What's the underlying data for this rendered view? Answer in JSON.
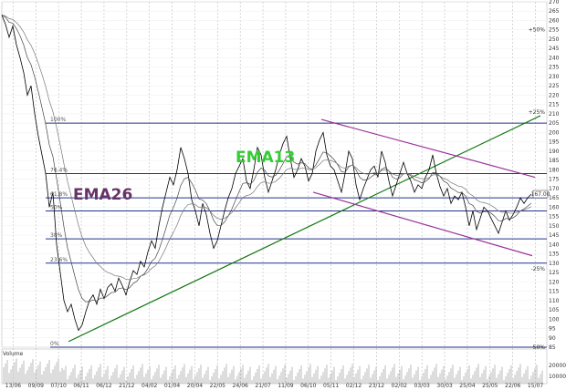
{
  "chart_data": {
    "type": "line",
    "title": "",
    "subtitle": "",
    "ylim": [
      85,
      270
    ],
    "y_ticks": [
      85,
      90,
      95,
      100,
      105,
      110,
      115,
      120,
      125,
      130,
      135,
      140,
      145,
      150,
      155,
      160,
      165,
      170,
      175,
      180,
      185,
      190,
      195,
      200,
      205,
      210,
      215,
      220,
      225,
      230,
      235,
      240,
      245,
      250,
      255,
      260,
      265,
      270
    ],
    "x_tick_labels": [
      "13/06",
      "09/09",
      "07/10",
      "06/11",
      "06/12",
      "21/12",
      "04/02",
      "01/04",
      "20/04",
      "22/05",
      "24/06",
      "21/07",
      "11/09",
      "06/10",
      "05/11",
      "02/12",
      "23/12",
      "02/02",
      "03/03",
      "30/03",
      "25/04",
      "25/05",
      "22/06",
      "15/07"
    ],
    "grid": true,
    "legend": "none",
    "price_label": "167.00",
    "volume_label": "Volume",
    "volume_ticks": [
      "200000",
      "100000"
    ],
    "annotations": [
      {
        "text": "EMA13",
        "color": "#33cc33"
      },
      {
        "text": "EMA26",
        "color": "#663366"
      }
    ],
    "pct_labels": [
      {
        "text": "+50%",
        "y": 255
      },
      {
        "text": "+25%",
        "y": 211
      },
      {
        "text": "-25%",
        "y": 127
      },
      {
        "text": "-50%",
        "y": 85
      }
    ],
    "horizontal_levels": [
      {
        "label": "0%",
        "value": 85
      },
      {
        "label": "23.6%",
        "value": 130
      },
      {
        "label": "38%",
        "value": 143
      },
      {
        "label": "50%",
        "value": 158
      },
      {
        "label": "61.8%",
        "value": 165
      },
      {
        "label": "76.4%",
        "value": 178
      },
      {
        "label": "100%",
        "value": 205
      }
    ],
    "trendlines": [
      {
        "name": "support",
        "color": "#117711",
        "x": [
          75,
          592
        ],
        "y": [
          88,
          209
        ]
      },
      {
        "name": "channel-upper",
        "color": "#993399",
        "x": [
          352,
          586
        ],
        "y": [
          207,
          176
        ]
      },
      {
        "name": "channel-lower",
        "color": "#993399",
        "x": [
          343,
          583
        ],
        "y": [
          168,
          134
        ]
      }
    ],
    "series": [
      {
        "color": "#000000",
        "x": [
          2,
          6,
          10,
          14,
          18,
          22,
          26,
          30,
          34,
          38,
          42,
          46,
          50,
          54,
          58,
          62,
          66,
          70,
          74,
          78,
          82,
          86,
          90,
          94,
          98,
          102,
          106,
          110,
          114,
          118,
          122,
          126,
          130,
          134,
          138,
          142,
          146,
          150,
          154,
          158,
          162,
          166,
          170,
          174,
          178,
          182,
          186,
          190,
          194,
          198,
          202,
          206,
          210,
          214,
          218,
          222,
          226,
          230,
          234,
          238,
          242,
          246,
          250,
          254,
          258,
          262,
          266,
          270,
          274,
          278,
          282,
          286,
          290,
          294,
          298,
          302,
          306,
          310,
          314,
          318,
          322,
          326,
          330,
          334,
          338,
          342,
          346,
          350,
          354,
          358,
          362,
          366,
          370,
          374,
          378,
          382,
          386,
          390,
          394,
          398,
          402,
          406,
          410,
          414,
          418,
          422,
          426,
          430,
          434,
          438,
          442,
          446,
          450,
          454,
          458,
          462,
          466,
          470,
          474,
          478,
          482,
          486,
          490,
          494,
          498,
          502,
          506,
          510,
          514,
          518,
          522,
          526,
          530,
          534,
          538,
          542,
          546,
          550,
          554,
          558,
          562,
          566,
          570,
          574,
          578,
          582
        ],
        "y": [
          263,
          258,
          251,
          257,
          247,
          240,
          232,
          220,
          225,
          210,
          198,
          188,
          178,
          160,
          168,
          140,
          125,
          110,
          104,
          108,
          100,
          94,
          97,
          104,
          110,
          113,
          108,
          116,
          111,
          117,
          119,
          115,
          122,
          118,
          113,
          120,
          126,
          124,
          131,
          128,
          136,
          142,
          138,
          150,
          160,
          168,
          176,
          172,
          180,
          192,
          186,
          178,
          164,
          158,
          150,
          162,
          156,
          146,
          138,
          142,
          150,
          158,
          165,
          170,
          178,
          182,
          186,
          174,
          170,
          180,
          192,
          188,
          176,
          168,
          174,
          180,
          188,
          194,
          198,
          186,
          176,
          180,
          186,
          182,
          174,
          178,
          190,
          196,
          200,
          188,
          182,
          180,
          174,
          168,
          178,
          190,
          186,
          172,
          164,
          170,
          175,
          180,
          182,
          176,
          190,
          184,
          174,
          166,
          172,
          178,
          184,
          178,
          174,
          168,
          172,
          170,
          176,
          180,
          188,
          178,
          171,
          166,
          170,
          162,
          166,
          164,
          168,
          160,
          150,
          158,
          148,
          154,
          160,
          158,
          154,
          150,
          146,
          152,
          158,
          153,
          156,
          160,
          165,
          162,
          165,
          167
        ]
      }
    ]
  }
}
